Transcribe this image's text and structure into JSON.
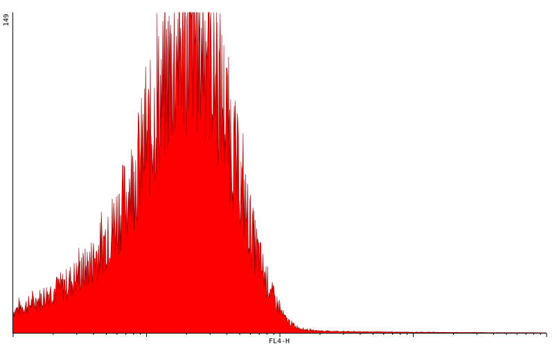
{
  "chart_data": {
    "type": "area",
    "title": "",
    "xlabel": "FL4-H",
    "ylabel": "",
    "y_max_label": "149",
    "ylim": [
      0,
      149
    ],
    "xlim": [
      0,
      1023
    ],
    "x_scale": "log",
    "x_decades": 4,
    "fill_color": "#ff0000",
    "outline_color": "#8b0000",
    "grid": false,
    "envelope": {
      "x": [
        0,
        20,
        40,
        60,
        80,
        100,
        120,
        140,
        160,
        180,
        200,
        220,
        240,
        260,
        280,
        300,
        320,
        340,
        360,
        380,
        400,
        420,
        440,
        460,
        480,
        500,
        520,
        540,
        560,
        580,
        600,
        640,
        680,
        720,
        760,
        800,
        840,
        880,
        920,
        960,
        1000,
        1023
      ],
      "y": [
        10,
        12,
        14,
        17,
        20,
        22,
        26,
        30,
        36,
        44,
        54,
        64,
        78,
        92,
        108,
        122,
        134,
        140,
        138,
        128,
        110,
        88,
        64,
        44,
        28,
        16,
        7,
        3,
        1.5,
        1,
        0.8,
        0.6,
        0.5,
        0.4,
        0.3,
        0.3,
        0.2,
        0.2,
        0.1,
        0.1,
        0.1,
        0
      ]
    },
    "spike_amplitude": 0.35
  }
}
